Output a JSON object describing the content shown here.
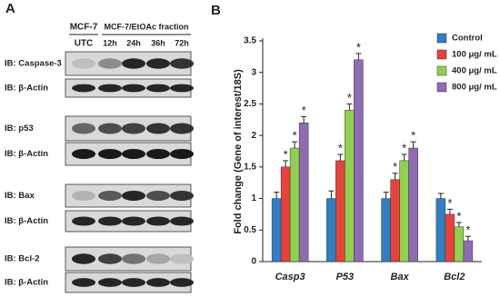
{
  "panel_a": {
    "label": "A",
    "groups": [
      "MCF-7",
      "MCF-7/EtOAc fraction"
    ],
    "lanes": [
      "UTC",
      "12h",
      "24h",
      "36h",
      "72h"
    ],
    "blots": [
      "IB: Caspase-3",
      "IB: β-Actin",
      "IB: p53",
      "IB: β-Actin",
      "IB: Bax",
      "IB: β-Actin",
      "IB: Bcl-2",
      "IB: β-Actin"
    ]
  },
  "chart_data": {
    "type": "bar",
    "panel_label": "B",
    "y_label": "Fold change (Gene of interest/18S)",
    "categories": [
      "Casp3",
      "P53",
      "Bax",
      "Bcl2"
    ],
    "significance_label": "*",
    "series": [
      {
        "name": "Control",
        "color": "#2f7fc4",
        "values": [
          1,
          1,
          1,
          1
        ],
        "errors": [
          0.1,
          0.12,
          0.1,
          0.08
        ],
        "significant": [
          false,
          false,
          false,
          false
        ]
      },
      {
        "name": "100 μg/ mL",
        "color": "#e8413c",
        "values": [
          1.5,
          1.6,
          1.3,
          0.75
        ],
        "errors": [
          0.1,
          0.1,
          0.1,
          0.08
        ],
        "significant": [
          true,
          true,
          true,
          true
        ]
      },
      {
        "name": "400 μg/ mL",
        "color": "#8fd14f",
        "values": [
          1.8,
          2.4,
          1.6,
          0.55
        ],
        "errors": [
          0.1,
          0.1,
          0.1,
          0.07
        ],
        "significant": [
          true,
          true,
          true,
          true
        ]
      },
      {
        "name": "800 μg/ mL",
        "color": "#8e6bb3",
        "values": [
          2.2,
          3.2,
          1.8,
          0.33
        ],
        "errors": [
          0.1,
          0.1,
          0.1,
          0.07
        ],
        "significant": [
          true,
          true,
          true,
          true
        ]
      }
    ],
    "ylim": [
      0,
      3.5
    ],
    "yticks": [
      0,
      0.5,
      1,
      1.5,
      2,
      2.5,
      3,
      3.5
    ]
  }
}
